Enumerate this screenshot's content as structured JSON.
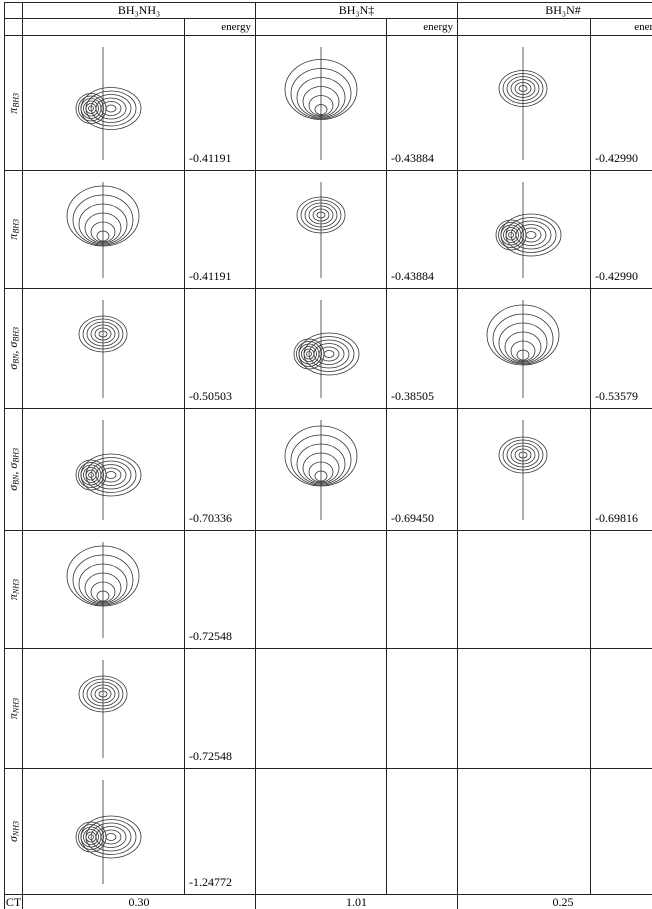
{
  "columns": [
    {
      "title": "BH₃NH₃",
      "energy_label": "energy",
      "ct": "0.30"
    },
    {
      "title": "BH₃N‡",
      "energy_label": "energy",
      "ct": "1.01"
    },
    {
      "title": "BH₃N#",
      "energy_label": "energy",
      "ct": "0.25"
    }
  ],
  "ct_label": "CT",
  "rows": [
    {
      "label": [
        {
          "t": "π",
          "sub": "BH3"
        }
      ],
      "energies": [
        "-0.41191",
        "-0.43884",
        "-0.42990"
      ]
    },
    {
      "label": [
        {
          "t": "π",
          "sub": "BH3"
        }
      ],
      "energies": [
        "-0.41191",
        "-0.43884",
        "-0.42990"
      ]
    },
    {
      "label": [
        {
          "t": "σ",
          "sub": "BN"
        },
        {
          "t": ", σ",
          "sub": "BH3"
        }
      ],
      "energies": [
        "-0.50503",
        "-0.38505",
        "-0.53579"
      ]
    },
    {
      "label": [
        {
          "t": "σ",
          "sub": "BN"
        },
        {
          "t": ", σ",
          "sub": "BH3"
        }
      ],
      "energies": [
        "-0.70336",
        "-0.69450",
        "-0.69816"
      ]
    },
    {
      "label": [
        {
          "t": "π",
          "sub": "NH3"
        }
      ],
      "energies": [
        "-0.72548",
        null,
        null
      ]
    },
    {
      "label": [
        {
          "t": "π",
          "sub": "NH3"
        }
      ],
      "energies": [
        "-0.72548",
        null,
        null
      ]
    },
    {
      "label": [
        {
          "t": "σ",
          "sub": "NH3"
        }
      ],
      "energies": [
        "-1.24772",
        null,
        null
      ]
    }
  ]
}
